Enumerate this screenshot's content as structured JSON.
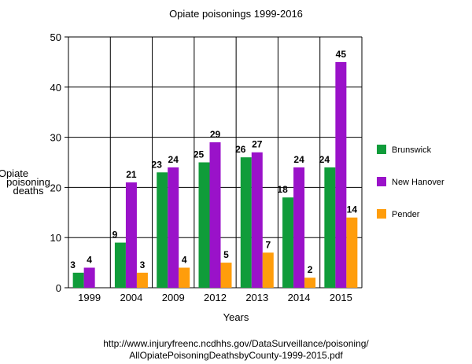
{
  "chart_data": {
    "type": "bar",
    "title": "Opiate poisonings 1999-2016",
    "xlabel": "Years",
    "ylabel": [
      "Opiate",
      "poisoning",
      "deaths"
    ],
    "ylim": [
      0,
      50
    ],
    "yticks": [
      0,
      10,
      20,
      30,
      40,
      50
    ],
    "grid": true,
    "legend_position": "right",
    "categories": [
      "1999",
      "2004",
      "2009",
      "2012",
      "2013",
      "2014",
      "2015"
    ],
    "series": [
      {
        "name": "Brunswick",
        "color": "#109c3a",
        "values": [
          3,
          9,
          23,
          25,
          26,
          18,
          24
        ]
      },
      {
        "name": "New Hanover",
        "color": "#9a12c9",
        "values": [
          4,
          21,
          24,
          29,
          27,
          24,
          45
        ]
      },
      {
        "name": "Pender",
        "color": "#ff9d0b",
        "values": [
          null,
          3,
          4,
          5,
          7,
          2,
          14
        ]
      }
    ]
  },
  "source": {
    "line1": "http://www.injuryfreenc.ncdhhs.gov/DataSurveillance/poisoning/",
    "line2": "AllOpiatePoisoningDeathsbyCounty-1999-2015.pdf"
  }
}
